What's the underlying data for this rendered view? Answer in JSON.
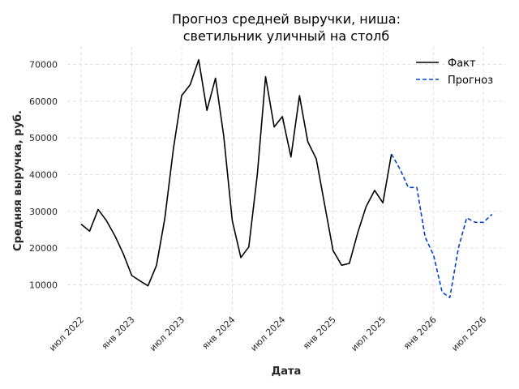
{
  "chart_data": {
    "type": "line",
    "title_line1": "Прогноз средней выручки, ниша:",
    "title_line2": "светильник уличный на столб",
    "xlabel": "Дата",
    "ylabel": "Средняя выручка, руб.",
    "xlim": [
      "2022-05-12",
      "2026-09-18"
    ],
    "ylim": [
      3000,
      75000
    ],
    "y_ticks": [
      10000,
      20000,
      30000,
      40000,
      50000,
      60000,
      70000
    ],
    "x_ticks": [
      {
        "date": "2022-07-01",
        "label": "июл 2022"
      },
      {
        "date": "2023-01-01",
        "label": "янв 2023"
      },
      {
        "date": "2023-07-01",
        "label": "июл 2023"
      },
      {
        "date": "2024-01-01",
        "label": "янв 2024"
      },
      {
        "date": "2024-07-01",
        "label": "июл 2024"
      },
      {
        "date": "2025-01-01",
        "label": "янв 2025"
      },
      {
        "date": "2025-07-01",
        "label": "июл 2025"
      },
      {
        "date": "2026-01-01",
        "label": "янв 2026"
      },
      {
        "date": "2026-07-01",
        "label": "июл 2026"
      }
    ],
    "grid": true,
    "legend_position": "top-right",
    "series": [
      {
        "name": "Факт",
        "color": "#000000",
        "style": "solid",
        "points": [
          [
            "2022-07-01",
            26500
          ],
          [
            "2022-08-01",
            24600
          ],
          [
            "2022-09-01",
            30500
          ],
          [
            "2022-10-01",
            27500
          ],
          [
            "2022-11-01",
            23300
          ],
          [
            "2022-12-01",
            18500
          ],
          [
            "2023-01-01",
            12500
          ],
          [
            "2023-02-01",
            11000
          ],
          [
            "2023-03-01",
            9700
          ],
          [
            "2023-04-01",
            15300
          ],
          [
            "2023-05-01",
            28000
          ],
          [
            "2023-06-01",
            47000
          ],
          [
            "2023-07-01",
            61500
          ],
          [
            "2023-08-01",
            64500
          ],
          [
            "2023-09-01",
            71300
          ],
          [
            "2023-10-01",
            57500
          ],
          [
            "2023-11-01",
            66300
          ],
          [
            "2023-12-01",
            50500
          ],
          [
            "2024-01-01",
            27500
          ],
          [
            "2024-02-01",
            17400
          ],
          [
            "2024-03-01",
            20300
          ],
          [
            "2024-04-01",
            40000
          ],
          [
            "2024-05-01",
            66700
          ],
          [
            "2024-06-01",
            53000
          ],
          [
            "2024-07-01",
            55800
          ],
          [
            "2024-08-01",
            44800
          ],
          [
            "2024-09-01",
            61500
          ],
          [
            "2024-10-01",
            49000
          ],
          [
            "2024-11-01",
            44300
          ],
          [
            "2024-12-01",
            32000
          ],
          [
            "2025-01-01",
            19300
          ],
          [
            "2025-02-01",
            15300
          ],
          [
            "2025-03-01",
            15800
          ],
          [
            "2025-04-01",
            24300
          ],
          [
            "2025-05-01",
            31300
          ],
          [
            "2025-06-01",
            35700
          ],
          [
            "2025-07-01",
            32300
          ],
          [
            "2025-08-01",
            45600
          ]
        ]
      },
      {
        "name": "Прогноз",
        "color": "#0043c8",
        "style": "dashed",
        "points": [
          [
            "2025-08-01",
            45600
          ],
          [
            "2025-09-01",
            41500
          ],
          [
            "2025-10-01",
            36500
          ],
          [
            "2025-11-01",
            36500
          ],
          [
            "2025-12-01",
            23000
          ],
          [
            "2026-01-01",
            18000
          ],
          [
            "2026-02-01",
            8000
          ],
          [
            "2026-03-01",
            6500
          ],
          [
            "2026-04-01",
            20000
          ],
          [
            "2026-05-01",
            28200
          ],
          [
            "2026-06-01",
            27000
          ],
          [
            "2026-07-01",
            27000
          ],
          [
            "2026-08-01",
            29200
          ]
        ]
      }
    ]
  }
}
